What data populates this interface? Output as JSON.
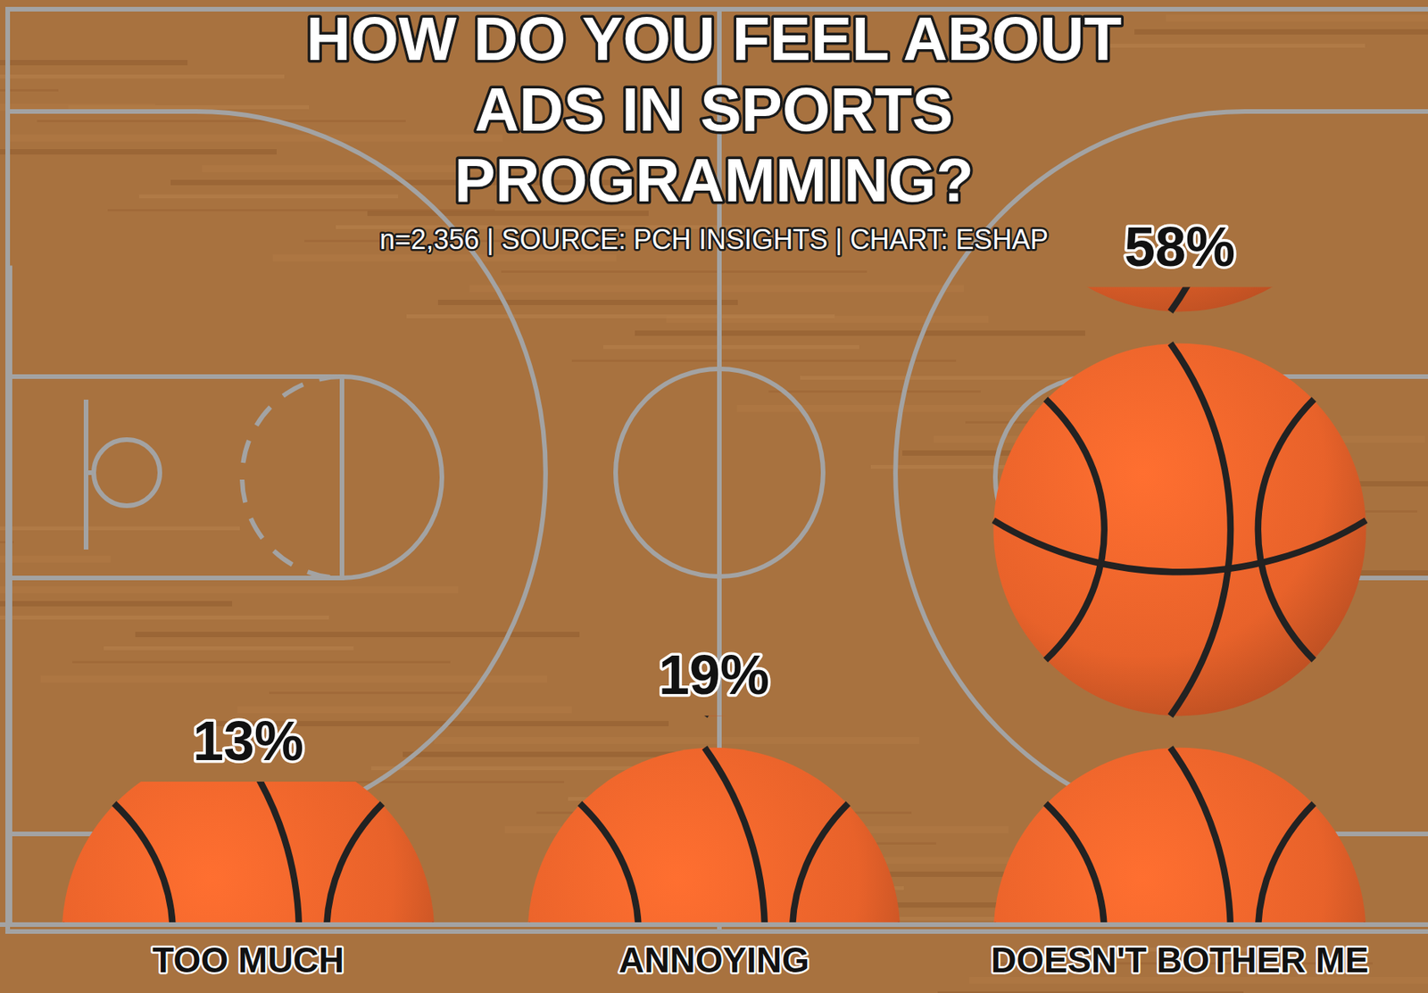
{
  "chart_data": {
    "type": "bar",
    "title": "HOW DO YOU FEEL ABOUT ADS IN SPORTS PROGRAMMING?",
    "subtitle": "n=2,356 | SOURCE: PCH INSIGHTS | CHART: ESHAP",
    "categories": [
      "TOO MUCH",
      "ANNOYING",
      "DOESN'T BOTHER ME"
    ],
    "values": [
      13,
      19,
      58
    ],
    "value_labels": [
      "13%",
      "19%",
      "58%"
    ],
    "data_labels": true,
    "color": "#e8622a",
    "ylim": [
      0,
      60
    ],
    "tick_labels": "x"
  }
}
